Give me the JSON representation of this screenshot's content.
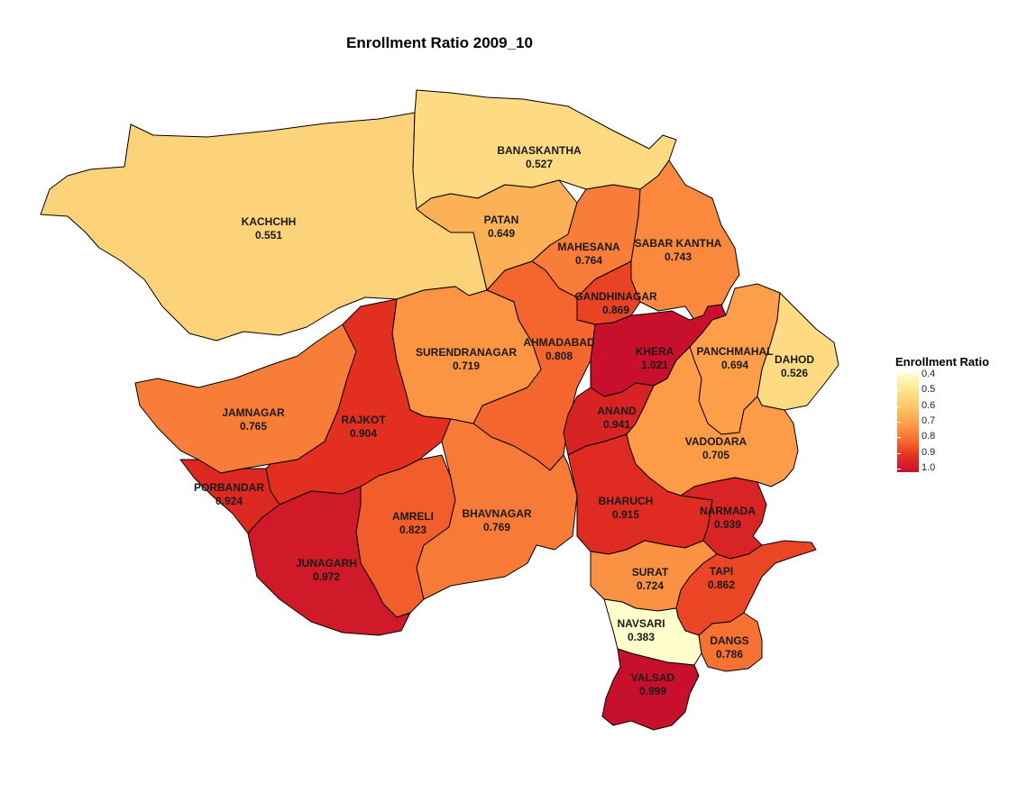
{
  "title": "Enrollment Ratio 2009_10",
  "legend": {
    "title": "Enrollment Ratio",
    "ticks": [
      "0.4",
      "0.5",
      "0.6",
      "0.7",
      "0.8",
      "0.9",
      "1.0"
    ]
  },
  "colors": {
    "low": "#ffffcc",
    "high": "#c8102d",
    "border": "#000000"
  },
  "districts": [
    {
      "name": "KACHCHH",
      "value": "0.551"
    },
    {
      "name": "BANASKANTHA",
      "value": "0.527"
    },
    {
      "name": "PATAN",
      "value": "0.649"
    },
    {
      "name": "MAHESANA",
      "value": "0.764"
    },
    {
      "name": "SABAR KANTHA",
      "value": "0.743"
    },
    {
      "name": "GANDHINAGAR",
      "value": "0.869"
    },
    {
      "name": "AHMADABAD",
      "value": "0.808"
    },
    {
      "name": "SURENDRANAGAR",
      "value": "0.719"
    },
    {
      "name": "KHERA",
      "value": "1.021"
    },
    {
      "name": "PANCHMAHAL",
      "value": "0.694"
    },
    {
      "name": "DAHOD",
      "value": "0.526"
    },
    {
      "name": "JAMNAGAR",
      "value": "0.765"
    },
    {
      "name": "RAJKOT",
      "value": "0.904"
    },
    {
      "name": "ANAND",
      "value": "0.941"
    },
    {
      "name": "VADODARA",
      "value": "0.705"
    },
    {
      "name": "PORBANDAR",
      "value": "0.924"
    },
    {
      "name": "AMRELI",
      "value": "0.823"
    },
    {
      "name": "BHAVNAGAR",
      "value": "0.769"
    },
    {
      "name": "BHARUCH",
      "value": "0.915"
    },
    {
      "name": "NARMADA",
      "value": "0.939"
    },
    {
      "name": "JUNAGARH",
      "value": "0.972"
    },
    {
      "name": "SURAT",
      "value": "0.724"
    },
    {
      "name": "TAPI",
      "value": "0.862"
    },
    {
      "name": "NAVSARI",
      "value": "0.383"
    },
    {
      "name": "DANGS",
      "value": "0.786"
    },
    {
      "name": "VALSAD",
      "value": "0.999"
    }
  ]
}
